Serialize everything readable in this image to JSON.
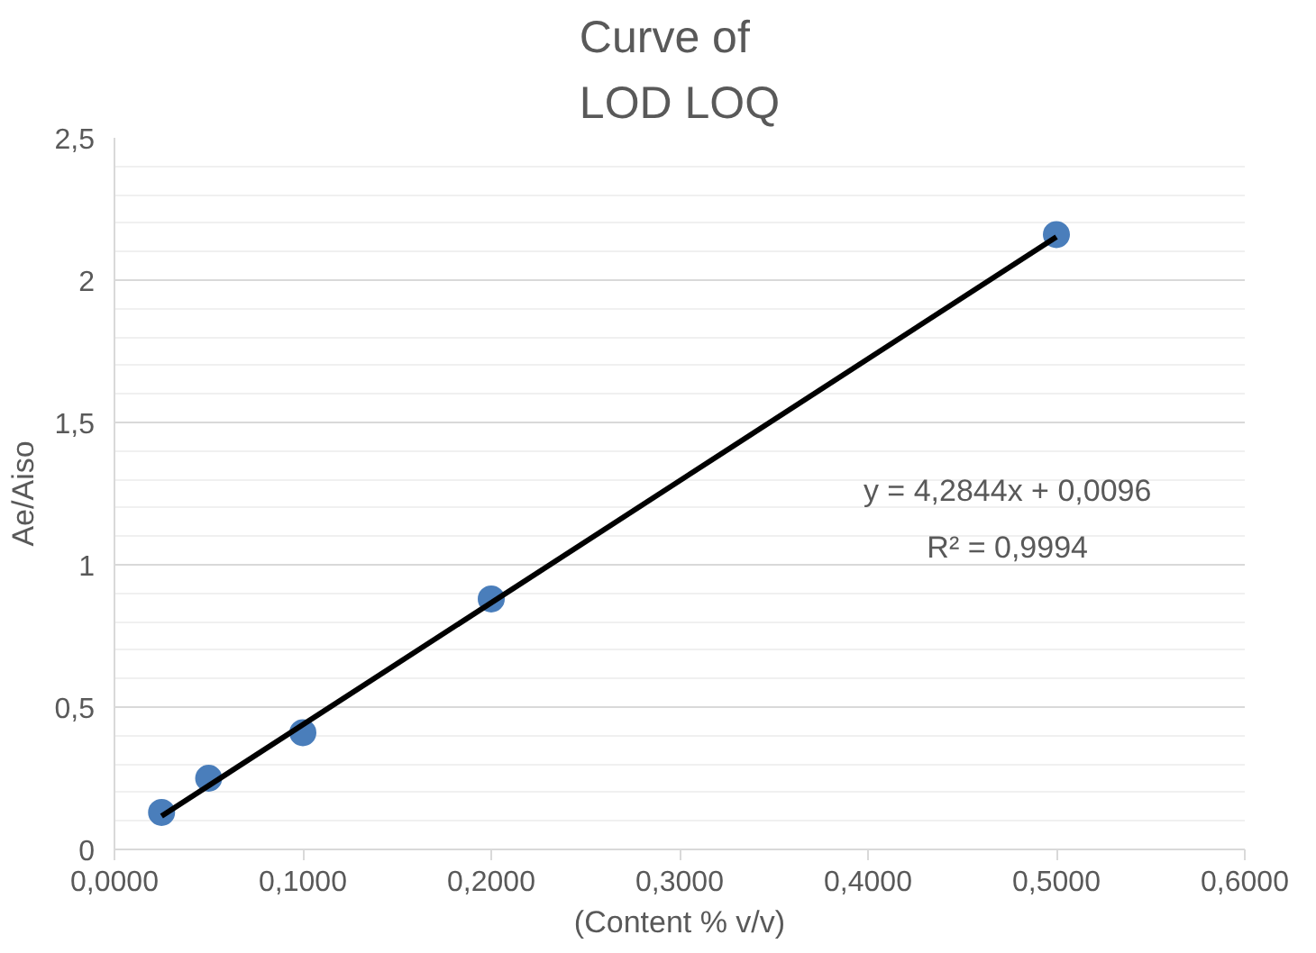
{
  "chart_data": {
    "type": "scatter",
    "title": "Curve of\nLOD LOQ",
    "xlabel": "(Content % v/v)",
    "ylabel": "Ae/Aiso",
    "x": [
      0.025,
      0.05,
      0.1,
      0.2,
      0.5
    ],
    "series": [
      {
        "marker": "circle",
        "color": "#4a7ebb",
        "values": [
          0.13,
          0.25,
          0.41,
          0.88,
          2.16
        ]
      },
      {
        "type": "line",
        "marker": "none",
        "color": "#000000",
        "x": [
          0.025,
          0.5
        ],
        "values": [
          0.117,
          2.152
        ]
      }
    ],
    "annotations": [
      "y = 4,2844x + 0,0096",
      "R² = 0,9994"
    ],
    "xlim": [
      0,
      0.6
    ],
    "ylim": [
      0,
      2.5
    ],
    "xticks": [
      {
        "value": 0,
        "label": "0,0000"
      },
      {
        "value": 0.1,
        "label": "0,1000"
      },
      {
        "value": 0.2,
        "label": "0,2000"
      },
      {
        "value": 0.3,
        "label": "0,3000"
      },
      {
        "value": 0.4,
        "label": "0,4000"
      },
      {
        "value": 0.5,
        "label": "0,5000"
      },
      {
        "value": 0.6,
        "label": "0,6000"
      }
    ],
    "yticks": [
      0,
      {
        "value": 0.5,
        "label": "0,5"
      },
      1,
      {
        "value": 1.5,
        "label": "1,5"
      },
      2,
      {
        "value": 2.5,
        "label": "2,5"
      }
    ],
    "grid": "y"
  }
}
